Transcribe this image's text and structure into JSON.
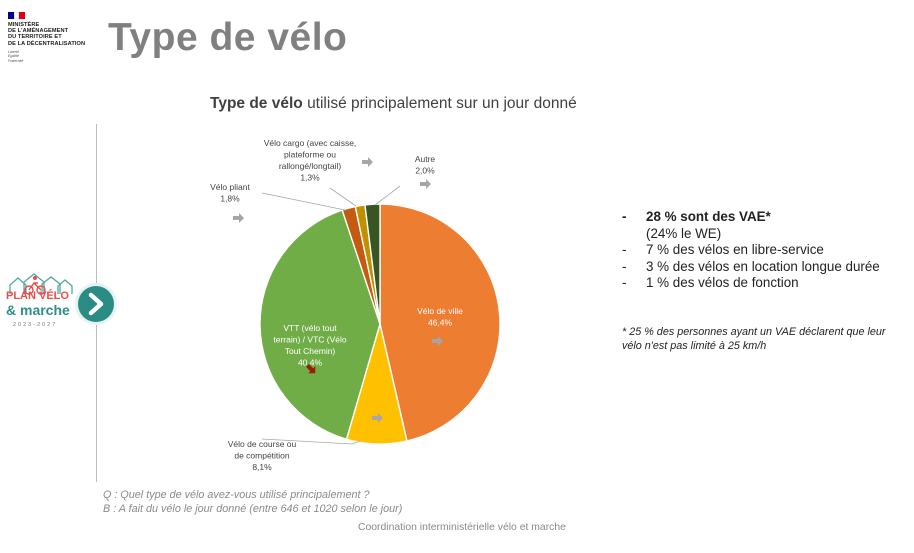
{
  "header": {
    "logo_lines": [
      "MINISTÈRE",
      "DE L'AMÉNAGEMENT",
      "DU TERRITOIRE ET",
      "DE LA DÉCENTRALISATION"
    ],
    "motto_lines": [
      "Liberté",
      "Égalité",
      "Fraternité"
    ],
    "flag_colors": [
      "#000091",
      "#ffffff",
      "#e1000f"
    ],
    "title": "Type de vélo"
  },
  "chart_data": {
    "type": "pie",
    "title_bold": "Type de vélo",
    "title_rest": "utilisé principalement sur un jour donné",
    "start_angle_deg": 0,
    "direction": "clockwise",
    "slices": [
      {
        "name": "Vélo de ville",
        "label_lines": [
          "Vélo de ville"
        ],
        "value": 46.4,
        "value_label": "46,4%",
        "color": "#ed7d31",
        "trend": "stable"
      },
      {
        "name": "Vélo de course ou de compétition",
        "label_lines": [
          "Vélo de course ou",
          "de compétition"
        ],
        "value": 8.1,
        "value_label": "8,1%",
        "color": "#ffc000",
        "trend": "stable"
      },
      {
        "name": "VTT (vélo tout terrain) / VTC (Vélo Tout Chemin)",
        "label_lines": [
          "VTT (vélo tout",
          "terrain) / VTC (Vélo",
          "Tout Chemin)"
        ],
        "value": 40.4,
        "value_label": "40,4%",
        "color": "#70ad47",
        "trend": "down"
      },
      {
        "name": "Vélo pliant",
        "label_lines": [
          "Vélo pliant"
        ],
        "value": 1.8,
        "value_label": "1,8%",
        "color": "#c55a11",
        "trend": "stable"
      },
      {
        "name": "Vélo cargo (avec caisse, plateforme ou rallongé/longtail)",
        "label_lines": [
          "Vélo cargo (avec caisse,",
          "plateforme ou",
          "rallongé/longtail)"
        ],
        "value": 1.3,
        "value_label": "1,3%",
        "color": "#bf9000",
        "trend": "stable"
      },
      {
        "name": "Autre",
        "label_lines": [
          "Autre"
        ],
        "value": 2.0,
        "value_label": "2,0%",
        "color": "#375623",
        "trend": "stable"
      }
    ],
    "trend_colors": {
      "stable": "#a6a6a6",
      "down": "#9c1c0c"
    }
  },
  "bullets": [
    {
      "text": "28 % sont des VAE*",
      "sub": "(24% le WE)",
      "strong": true
    },
    {
      "text": "7 % des vélos en libre-service"
    },
    {
      "text": "3 % des vélos en location longue durée"
    },
    {
      "text": "1 % des vélos de fonction"
    }
  ],
  "note": "* 25 % des personnes ayant un VAE déclarent que leur vélo n'est pas limité à 25 km/h",
  "question": {
    "q": "Q : Quel type de vélo avez-vous utilisé principalement ?",
    "b": "B : A fait du vélo le jour donné (entre 646 et 1020 selon le jour)"
  },
  "plan_logo": {
    "line1": "PLAN VÉLO",
    "line2": "& marche",
    "line3": "2023-2027"
  },
  "footer": "Coordination interministérielle vélo et marche"
}
